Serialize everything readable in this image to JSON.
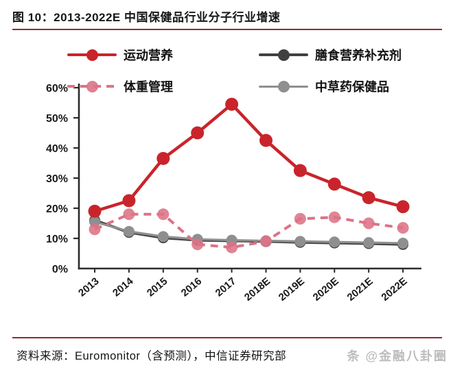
{
  "header": {
    "title": "图 10：2013-2022E 中国保健品行业分子行业增速"
  },
  "source": {
    "label": "资料来源：Euromonitor（含预测），中信证券研究部"
  },
  "watermark": {
    "text": "条 @金融八卦圈"
  },
  "colors": {
    "accent_rule": "#8E2B30",
    "axis": "#2b2b2b",
    "tick_text": "#1a1a1a",
    "watermark": "#bdbdbd"
  },
  "chart_data": {
    "type": "line",
    "title": "2013-2022E 中国保健品行业分子行业增速",
    "categories": [
      "2013",
      "2014",
      "2015",
      "2016",
      "2017",
      "2018E",
      "2019E",
      "2020E",
      "2021E",
      "2022E"
    ],
    "series": [
      {
        "name": "运动营养",
        "color": "#C9242B",
        "dashed": false,
        "values": [
          19,
          22.5,
          36.5,
          45,
          54.5,
          42.5,
          32.5,
          28,
          23.5,
          20.5
        ]
      },
      {
        "name": "膳食营养补充剂",
        "color": "#404040",
        "dashed": false,
        "values": [
          16,
          12,
          10.2,
          9.4,
          9.2,
          9.0,
          8.7,
          8.5,
          8.3,
          8.0
        ]
      },
      {
        "name": "体重管理",
        "color": "#DC7386",
        "dashed": true,
        "values": [
          13,
          18,
          18,
          8,
          7,
          9,
          16.5,
          17,
          15,
          13.5
        ]
      },
      {
        "name": "中草药保健品",
        "color": "#8F8F8F",
        "dashed": false,
        "values": [
          15.5,
          12.3,
          10.6,
          9.7,
          9.4,
          9.2,
          9.0,
          8.8,
          8.6,
          8.4
        ]
      }
    ],
    "xlabel": "",
    "ylabel": "",
    "ylim": [
      0,
      60
    ],
    "ytick_step": 10,
    "ytick_labels": [
      "0%",
      "10%",
      "20%",
      "30%",
      "40%",
      "50%",
      "60%"
    ],
    "grid": false,
    "legend_position": "top"
  }
}
